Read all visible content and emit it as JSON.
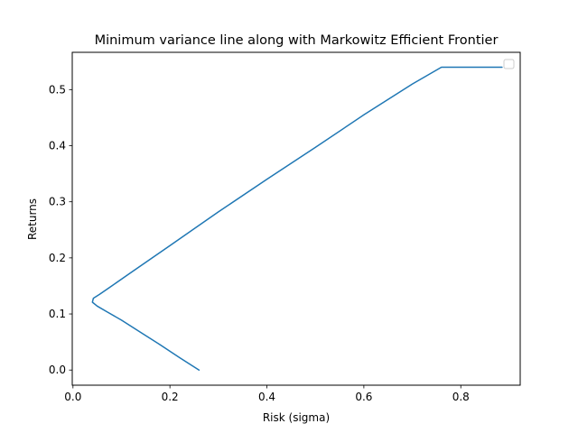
{
  "chart_data": {
    "type": "line",
    "title": "Minimum variance line along with Markowitz Efficient Frontier",
    "xlabel": "Risk (sigma)",
    "ylabel": "Returns",
    "xlim": [
      -0.0015,
      0.9225
    ],
    "ylim": [
      -0.027,
      0.5665
    ],
    "xticks": [
      "0.0",
      "0.2",
      "0.4",
      "0.6",
      "0.8"
    ],
    "xtick_values": [
      0.0,
      0.2,
      0.4,
      0.6,
      0.8
    ],
    "yticks": [
      "0.0",
      "0.1",
      "0.2",
      "0.3",
      "0.4",
      "0.5"
    ],
    "ytick_values": [
      0.0,
      0.1,
      0.2,
      0.3,
      0.4,
      0.5
    ],
    "grid": false,
    "legend": "top-right (empty)",
    "series": [
      {
        "color": "#1f77b4",
        "points": [
          [
            0.26,
            0.0
          ],
          [
            0.22,
            0.022
          ],
          [
            0.18,
            0.045
          ],
          [
            0.14,
            0.067
          ],
          [
            0.1,
            0.089
          ],
          [
            0.07,
            0.104
          ],
          [
            0.05,
            0.114
          ],
          [
            0.04,
            0.121
          ],
          [
            0.042,
            0.128
          ],
          [
            0.055,
            0.135
          ],
          [
            0.08,
            0.15
          ],
          [
            0.12,
            0.174
          ],
          [
            0.2,
            0.222
          ],
          [
            0.3,
            0.282
          ],
          [
            0.4,
            0.34
          ],
          [
            0.5,
            0.397
          ],
          [
            0.6,
            0.455
          ],
          [
            0.7,
            0.51
          ],
          [
            0.76,
            0.54
          ],
          [
            0.885,
            0.54
          ]
        ]
      }
    ]
  }
}
